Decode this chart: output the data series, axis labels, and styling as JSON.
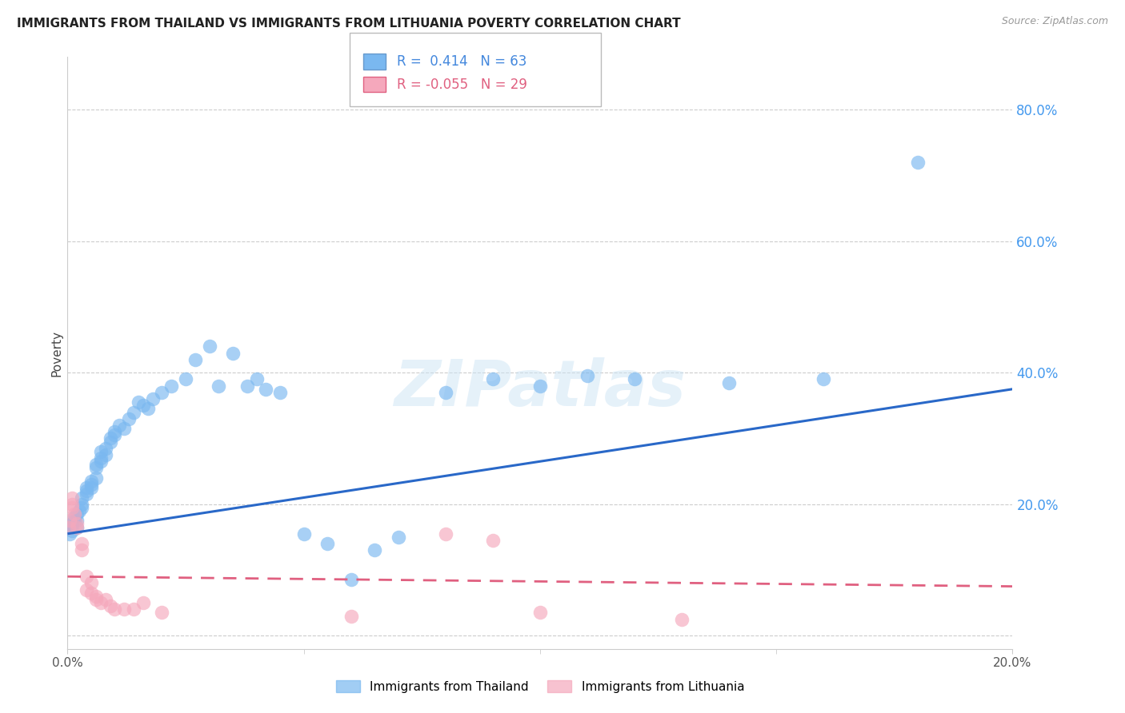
{
  "title": "IMMIGRANTS FROM THAILAND VS IMMIGRANTS FROM LITHUANIA POVERTY CORRELATION CHART",
  "source": "Source: ZipAtlas.com",
  "ylabel": "Poverty",
  "right_yticks": [
    0.0,
    0.2,
    0.4,
    0.6,
    0.8
  ],
  "right_yticklabels": [
    "",
    "20.0%",
    "40.0%",
    "60.0%",
    "80.0%"
  ],
  "xlim": [
    0.0,
    0.2
  ],
  "ylim": [
    -0.02,
    0.88
  ],
  "thailand_R": 0.414,
  "thailand_N": 63,
  "lithuania_R": -0.055,
  "lithuania_N": 29,
  "thailand_color": "#7ab8f0",
  "lithuania_color": "#f5a8bc",
  "trend_thailand_color": "#2968c8",
  "trend_lithuania_color": "#e06080",
  "watermark": "ZIPatlas",
  "legend_label_thailand": "Immigrants from Thailand",
  "legend_label_lithuania": "Immigrants from Lithuania",
  "thailand_x": [
    0.0005,
    0.001,
    0.001,
    0.001,
    0.0015,
    0.0015,
    0.002,
    0.002,
    0.002,
    0.0025,
    0.003,
    0.003,
    0.003,
    0.004,
    0.004,
    0.004,
    0.005,
    0.005,
    0.005,
    0.006,
    0.006,
    0.006,
    0.007,
    0.007,
    0.007,
    0.008,
    0.008,
    0.009,
    0.009,
    0.01,
    0.01,
    0.011,
    0.012,
    0.013,
    0.014,
    0.015,
    0.016,
    0.017,
    0.018,
    0.02,
    0.022,
    0.025,
    0.027,
    0.03,
    0.032,
    0.035,
    0.038,
    0.04,
    0.042,
    0.045,
    0.05,
    0.055,
    0.06,
    0.065,
    0.07,
    0.08,
    0.09,
    0.1,
    0.11,
    0.12,
    0.14,
    0.16,
    0.18
  ],
  "thailand_y": [
    0.155,
    0.17,
    0.165,
    0.16,
    0.175,
    0.18,
    0.185,
    0.175,
    0.165,
    0.19,
    0.2,
    0.21,
    0.195,
    0.215,
    0.225,
    0.22,
    0.23,
    0.225,
    0.235,
    0.24,
    0.255,
    0.26,
    0.27,
    0.28,
    0.265,
    0.275,
    0.285,
    0.295,
    0.3,
    0.31,
    0.305,
    0.32,
    0.315,
    0.33,
    0.34,
    0.355,
    0.35,
    0.345,
    0.36,
    0.37,
    0.38,
    0.39,
    0.42,
    0.44,
    0.38,
    0.43,
    0.38,
    0.39,
    0.375,
    0.37,
    0.155,
    0.14,
    0.085,
    0.13,
    0.15,
    0.37,
    0.39,
    0.38,
    0.395,
    0.39,
    0.385,
    0.39,
    0.72
  ],
  "lithuania_x": [
    0.0003,
    0.0005,
    0.001,
    0.001,
    0.001,
    0.0015,
    0.002,
    0.002,
    0.003,
    0.003,
    0.004,
    0.004,
    0.005,
    0.005,
    0.006,
    0.006,
    0.007,
    0.008,
    0.009,
    0.01,
    0.012,
    0.014,
    0.016,
    0.02,
    0.06,
    0.08,
    0.09,
    0.1,
    0.13
  ],
  "lithuania_y": [
    0.165,
    0.175,
    0.21,
    0.2,
    0.195,
    0.185,
    0.17,
    0.165,
    0.14,
    0.13,
    0.09,
    0.07,
    0.08,
    0.065,
    0.06,
    0.055,
    0.05,
    0.055,
    0.045,
    0.04,
    0.04,
    0.04,
    0.05,
    0.035,
    0.03,
    0.155,
    0.145,
    0.035,
    0.025
  ],
  "trend_thai_x0": 0.0,
  "trend_thai_y0": 0.155,
  "trend_thai_x1": 0.2,
  "trend_thai_y1": 0.375,
  "trend_lith_x0": 0.0,
  "trend_lith_y0": 0.09,
  "trend_lith_x1": 0.2,
  "trend_lith_y1": 0.075
}
